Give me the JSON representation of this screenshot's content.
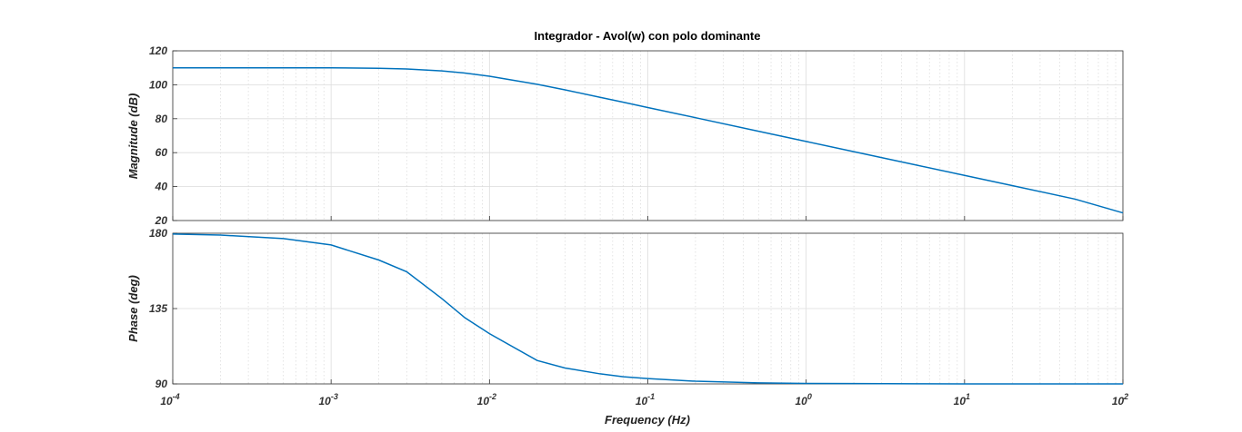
{
  "chart_data": [
    {
      "type": "line",
      "title": "Integrador - Avol(w) con polo dominante",
      "ylabel": "Magnitude (dB)",
      "xscale": "log",
      "xlim": [
        0.0001,
        100
      ],
      "ylim": [
        20,
        120
      ],
      "yticks": [
        20,
        40,
        60,
        80,
        100,
        120
      ],
      "grid": true,
      "series": [
        {
          "x": [
            0.0001,
            0.0002,
            0.0005,
            0.001,
            0.002,
            0.003,
            0.005,
            0.007,
            0.01,
            0.02,
            0.03,
            0.05,
            0.07,
            0.1,
            0.2,
            0.5,
            1,
            2,
            5,
            10,
            20,
            50,
            100
          ],
          "values": [
            110,
            110,
            110,
            110,
            109.7,
            109.3,
            108.2,
            106.9,
            105,
            100.3,
            97,
            92.6,
            89.7,
            86.6,
            80.6,
            72.6,
            66.6,
            60.6,
            52.6,
            46.6,
            40.6,
            32.6,
            24.5
          ]
        }
      ],
      "color": "#0072bd"
    },
    {
      "type": "line",
      "xlabel": "Frequency  (Hz)",
      "ylabel": "Phase (deg)",
      "xscale": "log",
      "xlim": [
        0.0001,
        100
      ],
      "ylim": [
        90,
        180
      ],
      "yticks": [
        90,
        135,
        180
      ],
      "xticks": [
        {
          "base": "10",
          "exp": "-4"
        },
        {
          "base": "10",
          "exp": "-3"
        },
        {
          "base": "10",
          "exp": "-2"
        },
        {
          "base": "10",
          "exp": "-1"
        },
        {
          "base": "10",
          "exp": "0"
        },
        {
          "base": "10",
          "exp": "1"
        },
        {
          "base": "10",
          "exp": "2"
        }
      ],
      "grid": true,
      "series": [
        {
          "x": [
            0.0001,
            0.0002,
            0.0005,
            0.001,
            0.002,
            0.003,
            0.005,
            0.007,
            0.01,
            0.02,
            0.03,
            0.05,
            0.07,
            0.1,
            0.2,
            0.5,
            1,
            2,
            5,
            10,
            20,
            50,
            100
          ],
          "values": [
            179.5,
            178.9,
            176.8,
            173,
            164,
            157,
            141,
            129.5,
            120,
            104,
            99.5,
            96,
            94.3,
            93.2,
            91.6,
            90.6,
            90.3,
            90.2,
            90.1,
            90,
            90,
            90,
            90
          ]
        }
      ],
      "color": "#0072bd"
    }
  ]
}
